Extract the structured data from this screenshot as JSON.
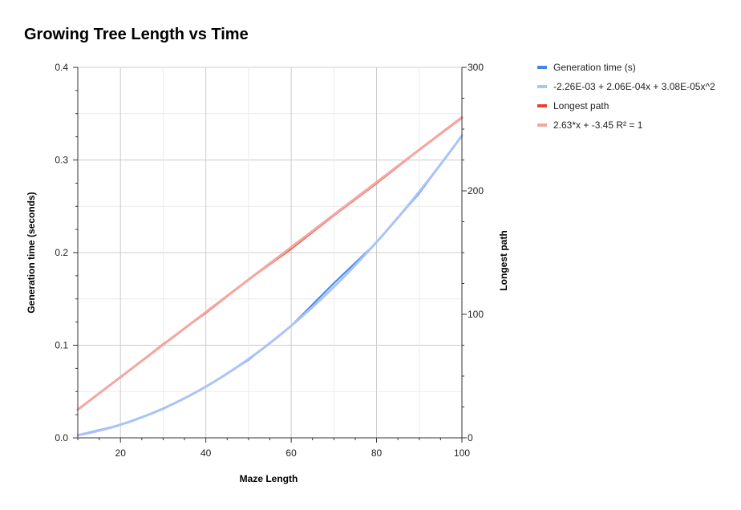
{
  "chart_data": {
    "type": "line",
    "title": "Growing Tree Length vs Time",
    "xlabel": "Maze Length",
    "ylabel_left": "Generation time (seconds)",
    "ylabel_right": "Longest path",
    "xlim": [
      10,
      100
    ],
    "ylim_left": [
      0,
      0.4
    ],
    "ylim_right": [
      0,
      300
    ],
    "x_ticks": [
      "20",
      "40",
      "60",
      "80",
      "100"
    ],
    "y_left_ticks": [
      "0.0",
      "0.1",
      "0.2",
      "0.3",
      "0.4"
    ],
    "y_right_ticks": [
      "0",
      "100",
      "200",
      "300"
    ],
    "grid": true,
    "legend_position": "right",
    "x": [
      10,
      20,
      30,
      40,
      50,
      60,
      70,
      80,
      90,
      100
    ],
    "series": [
      {
        "name": "Generation time (s)",
        "axis": "left",
        "color": "#4285f4",
        "values": [
          0.003,
          0.014,
          0.031,
          0.055,
          0.084,
          0.121,
          0.167,
          0.211,
          0.264,
          0.326
        ]
      },
      {
        "name": "-2.26E-03 + 2.06E-04x + 3.08E-05x^2",
        "axis": "left",
        "color": "#a9c4f5",
        "trendline": "polynomial",
        "coefficients": [
          -0.00226,
          0.000206,
          3.08e-05
        ]
      },
      {
        "name": "Longest path",
        "axis": "right",
        "color": "#ea4335",
        "values": [
          23,
          49,
          76,
          101,
          128,
          153,
          180,
          206,
          233,
          259
        ]
      },
      {
        "name": "2.63*x + -3.45 R² = 1",
        "axis": "right",
        "color": "#f4a6a0",
        "trendline": "linear",
        "coefficients": [
          -3.45,
          2.63
        ]
      }
    ]
  }
}
